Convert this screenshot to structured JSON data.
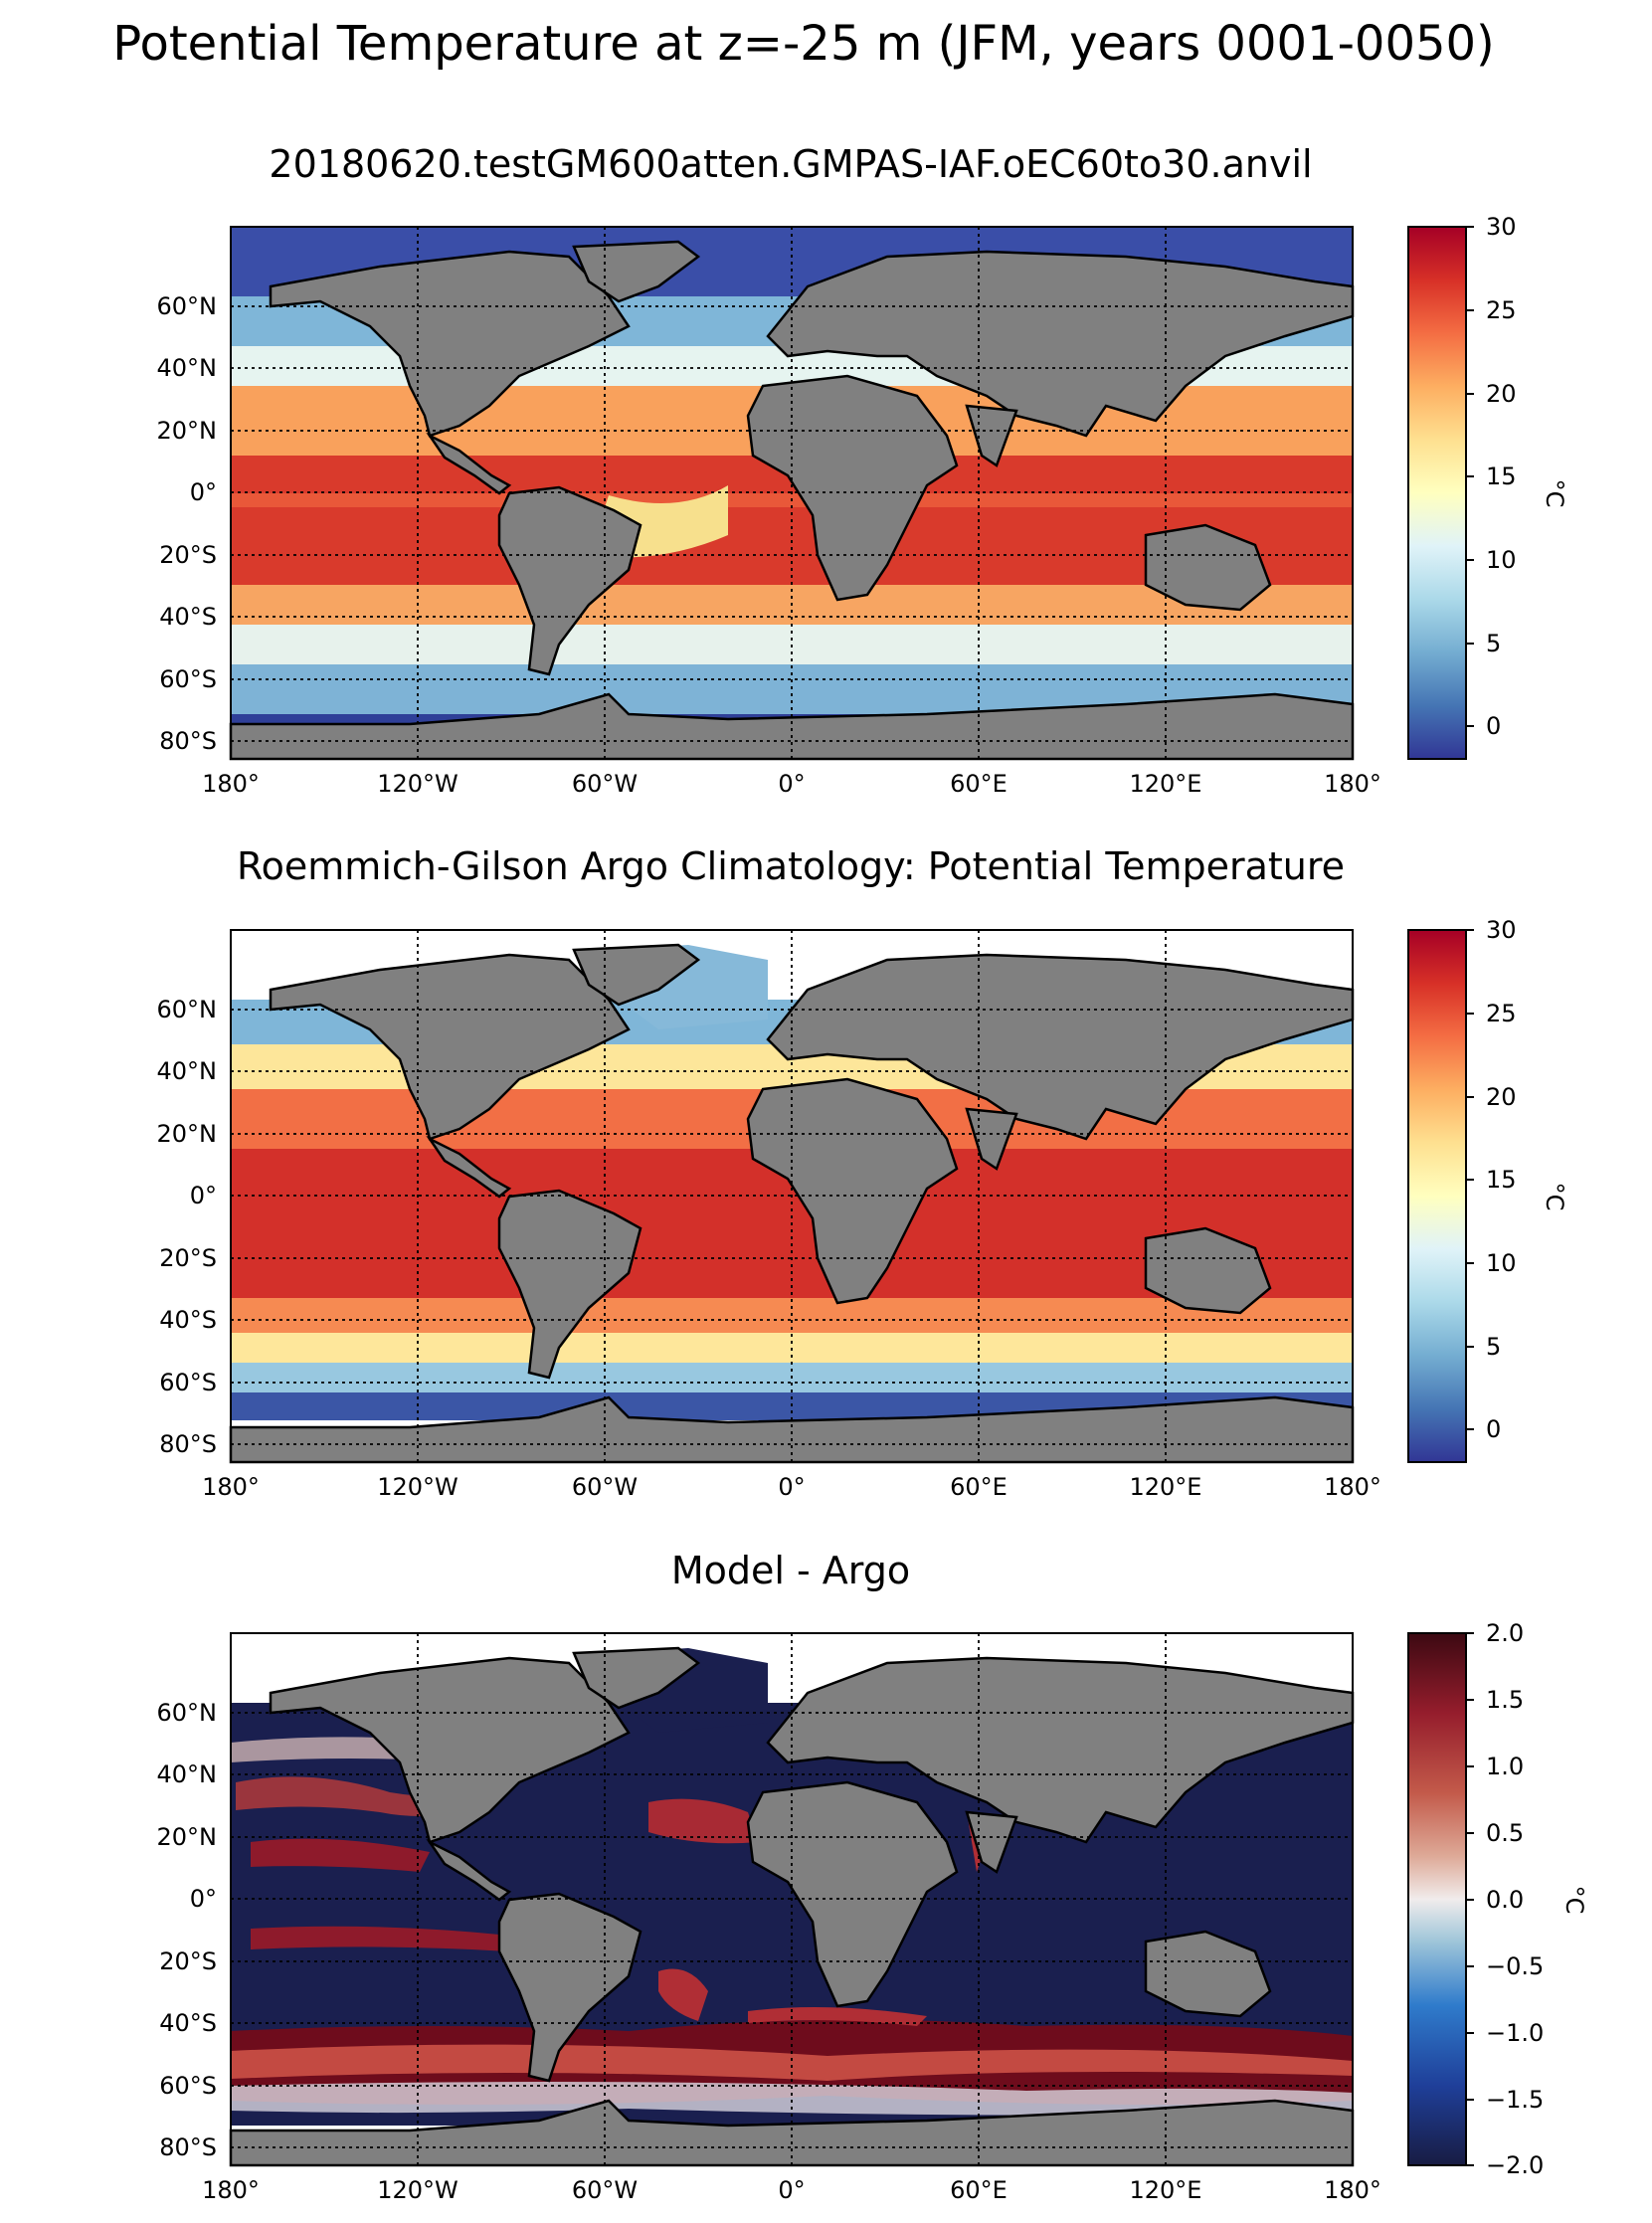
{
  "figure": {
    "suptitle": "Potential Temperature at z=-25 m (JFM, years 0001-0050)"
  },
  "chart_data": [
    {
      "type": "heatmap",
      "title": "20180620.testGM600atten.GMPAS-IAF.oEC60to30.anvil",
      "colormap": "RdYlBu_r",
      "colorbar_label": "°C",
      "colorbar_ticks": [
        "30",
        "25",
        "20",
        "15",
        "10",
        "5",
        "0"
      ],
      "clim": [
        -2,
        30
      ],
      "xlabels": [
        "180°",
        "120°W",
        "60°W",
        "0°",
        "60°E",
        "120°E",
        "180°"
      ],
      "ylabels": [
        "60°N",
        "40°N",
        "20°N",
        "0°",
        "20°S",
        "40°S",
        "60°S",
        "80°S"
      ],
      "xlim": [
        -180,
        180
      ],
      "ylim": [
        -85,
        85
      ],
      "grid": true,
      "masked_region": "land (gray)"
    },
    {
      "type": "heatmap",
      "title": "Roemmich-Gilson Argo Climatology: Potential Temperature",
      "colormap": "RdYlBu_r",
      "colorbar_label": "°C",
      "colorbar_ticks": [
        "30",
        "25",
        "20",
        "15",
        "10",
        "5",
        "0"
      ],
      "clim": [
        -2,
        30
      ],
      "xlabels": [
        "180°",
        "120°W",
        "60°W",
        "0°",
        "60°E",
        "120°E",
        "180°"
      ],
      "ylabels": [
        "60°N",
        "40°N",
        "20°N",
        "0°",
        "20°S",
        "40°S",
        "60°S",
        "80°S"
      ],
      "xlim": [
        -180,
        180
      ],
      "ylim": [
        -85,
        85
      ],
      "grid": true,
      "masked_region": "land (gray), no data (white)"
    },
    {
      "type": "heatmap",
      "title": "Model - Argo",
      "colormap": "balance",
      "colorbar_label": "°C",
      "colorbar_ticks": [
        "2.0",
        "1.5",
        "1.0",
        "0.5",
        "0.0",
        "−0.5",
        "−1.0",
        "−1.5",
        "−2.0"
      ],
      "clim": [
        -2,
        2
      ],
      "xlabels": [
        "180°",
        "120°W",
        "60°W",
        "0°",
        "60°E",
        "120°E",
        "180°"
      ],
      "ylabels": [
        "60°N",
        "40°N",
        "20°N",
        "0°",
        "20°S",
        "40°S",
        "60°S",
        "80°S"
      ],
      "xlim": [
        -180,
        180
      ],
      "ylim": [
        -85,
        85
      ],
      "grid": true,
      "masked_region": "land (gray), no data (white)"
    }
  ],
  "colors": {
    "land": "#808080",
    "nodata": "#ffffff",
    "coast": "#000000"
  }
}
